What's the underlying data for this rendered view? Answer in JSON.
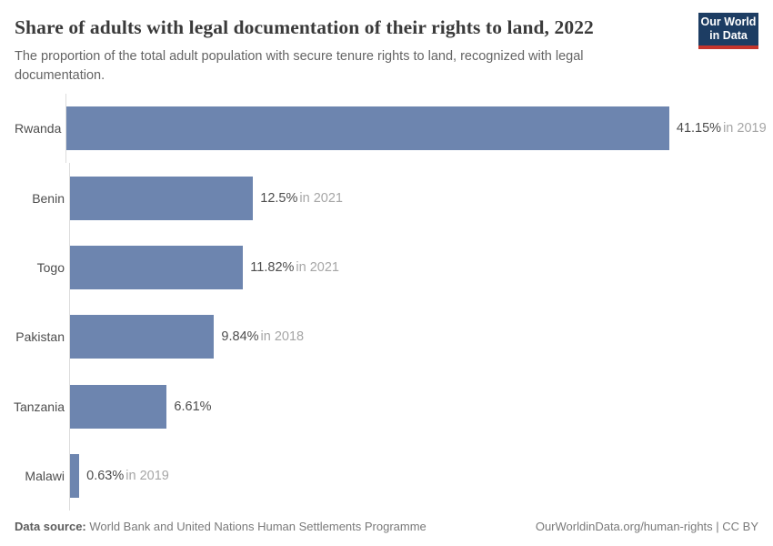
{
  "header": {
    "title": "Share of adults with legal documentation of their rights to land, 2022",
    "subtitle": "The proportion of the total adult population with secure tenure rights to land, recognized with legal documentation.",
    "logo": {
      "line1": "Our World",
      "line2": "in Data",
      "bg_color": "#1d3d63",
      "accent_color": "#c5352c"
    }
  },
  "chart_data": {
    "type": "bar",
    "orientation": "horizontal",
    "title": "Share of adults with legal documentation of their rights to land, 2022",
    "unit": "%",
    "categories": [
      "Rwanda",
      "Benin",
      "Togo",
      "Pakistan",
      "Tanzania",
      "Malawi"
    ],
    "values": [
      41.15,
      12.5,
      11.82,
      9.84,
      6.61,
      0.63
    ],
    "value_labels": [
      "41.15%",
      "12.5%",
      "11.82%",
      "9.84%",
      "6.61%",
      "0.63%"
    ],
    "year_labels": [
      "in 2019",
      "in 2021",
      "in 2021",
      "in 2018",
      "",
      "in 2019"
    ],
    "xlim": [
      0,
      47.3
    ],
    "bar_color": "#6d85af",
    "grid": false,
    "legend": "none"
  },
  "footer": {
    "source_label": "Data source:",
    "source_text": " World Bank and United Nations Human Settlements Programme",
    "link_text": "OurWorldinData.org/human-rights | CC BY"
  }
}
